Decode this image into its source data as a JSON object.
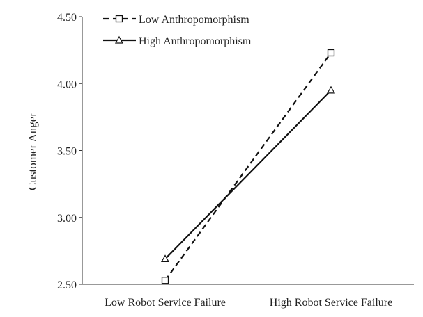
{
  "chart_data": {
    "type": "line",
    "title": "",
    "xlabel": "",
    "ylabel": "Customer Anger",
    "categories": [
      "Low Robot Service Failure",
      "High Robot Service Failure"
    ],
    "ylim": [
      2.5,
      4.5
    ],
    "yticks": [
      2.5,
      3.0,
      3.5,
      4.0,
      4.5
    ],
    "ytick_labels": [
      "2.50",
      "3.00",
      "3.50",
      "4.00",
      "4.50"
    ],
    "grid": false,
    "legend_position": "top-left",
    "series": [
      {
        "name": "Low Anthropomorphism",
        "values": [
          2.53,
          4.23
        ],
        "style": "dashed",
        "marker": "square",
        "color": "#111111"
      },
      {
        "name": "High Anthropomorphism",
        "values": [
          2.69,
          3.95
        ],
        "style": "solid",
        "marker": "triangle",
        "color": "#111111"
      }
    ]
  }
}
